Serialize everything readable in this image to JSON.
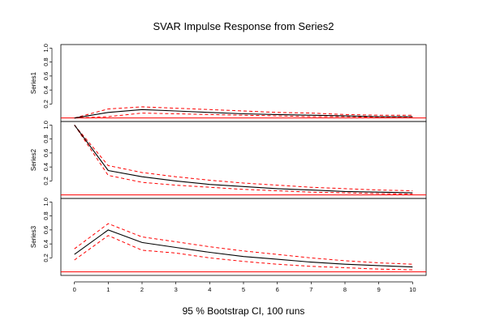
{
  "chart_data": {
    "type": "line",
    "title": "SVAR Impulse Response from Series2",
    "subtitle": "95 % Bootstrap CI,  100 runs",
    "x": [
      0,
      1,
      2,
      3,
      4,
      5,
      6,
      7,
      8,
      9,
      10
    ],
    "x_ticks": [
      "0",
      "1",
      "2",
      "3",
      "4",
      "5",
      "6",
      "7",
      "8",
      "9",
      "10"
    ],
    "y_ticks": [
      "0.2",
      "0.4",
      "0.6",
      "0.8",
      "1.0"
    ],
    "ylim": [
      -0.05,
      1.05
    ],
    "zero_line_color": "#ff0000",
    "response_color": "#000000",
    "ci_color": "#ff0000",
    "grid": false,
    "panels": [
      {
        "ylabel": "Series1",
        "response": [
          0.0,
          0.08,
          0.12,
          0.1,
          0.08,
          0.06,
          0.05,
          0.04,
          0.03,
          0.02,
          0.02
        ],
        "ci_lower": [
          0.0,
          0.02,
          0.07,
          0.06,
          0.05,
          0.04,
          0.03,
          0.02,
          0.02,
          0.01,
          0.01
        ],
        "ci_upper": [
          0.0,
          0.13,
          0.16,
          0.14,
          0.12,
          0.1,
          0.08,
          0.07,
          0.05,
          0.04,
          0.04
        ]
      },
      {
        "ylabel": "Series2",
        "response": [
          1.0,
          0.35,
          0.26,
          0.2,
          0.15,
          0.12,
          0.09,
          0.07,
          0.05,
          0.04,
          0.03
        ],
        "ci_lower": [
          1.0,
          0.28,
          0.18,
          0.14,
          0.11,
          0.08,
          0.06,
          0.04,
          0.03,
          0.02,
          0.01
        ],
        "ci_upper": [
          1.0,
          0.42,
          0.32,
          0.26,
          0.21,
          0.17,
          0.14,
          0.11,
          0.09,
          0.07,
          0.06
        ]
      },
      {
        "ylabel": "Series3",
        "response": [
          0.25,
          0.6,
          0.42,
          0.35,
          0.28,
          0.22,
          0.18,
          0.14,
          0.11,
          0.09,
          0.07
        ],
        "ci_lower": [
          0.17,
          0.52,
          0.31,
          0.27,
          0.2,
          0.15,
          0.11,
          0.08,
          0.06,
          0.04,
          0.03
        ],
        "ci_upper": [
          0.33,
          0.69,
          0.5,
          0.43,
          0.36,
          0.3,
          0.25,
          0.2,
          0.16,
          0.13,
          0.11
        ]
      }
    ]
  }
}
